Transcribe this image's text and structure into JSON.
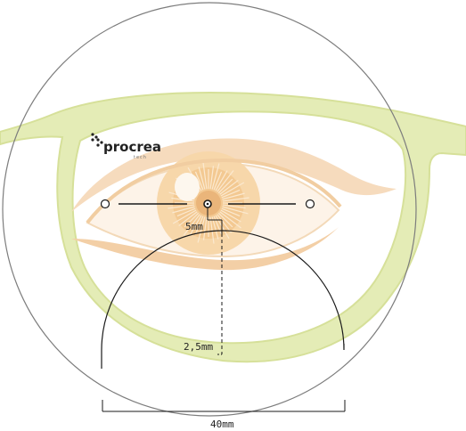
{
  "logo": {
    "name": "procrea",
    "sub": "tech"
  },
  "labels": {
    "pupil_offset": "5mm",
    "vertical_drop": "2,5mm",
    "width": "40mm"
  },
  "colors": {
    "frame": "#e3ebb4",
    "frame_edge": "#d2dd8e",
    "iris": "#f7d6a8",
    "iris_dark": "#f0c286",
    "eyeliner": "#f5dcc0",
    "lens_outline": "#7a7a7a",
    "lines": "#1a1a1a"
  }
}
